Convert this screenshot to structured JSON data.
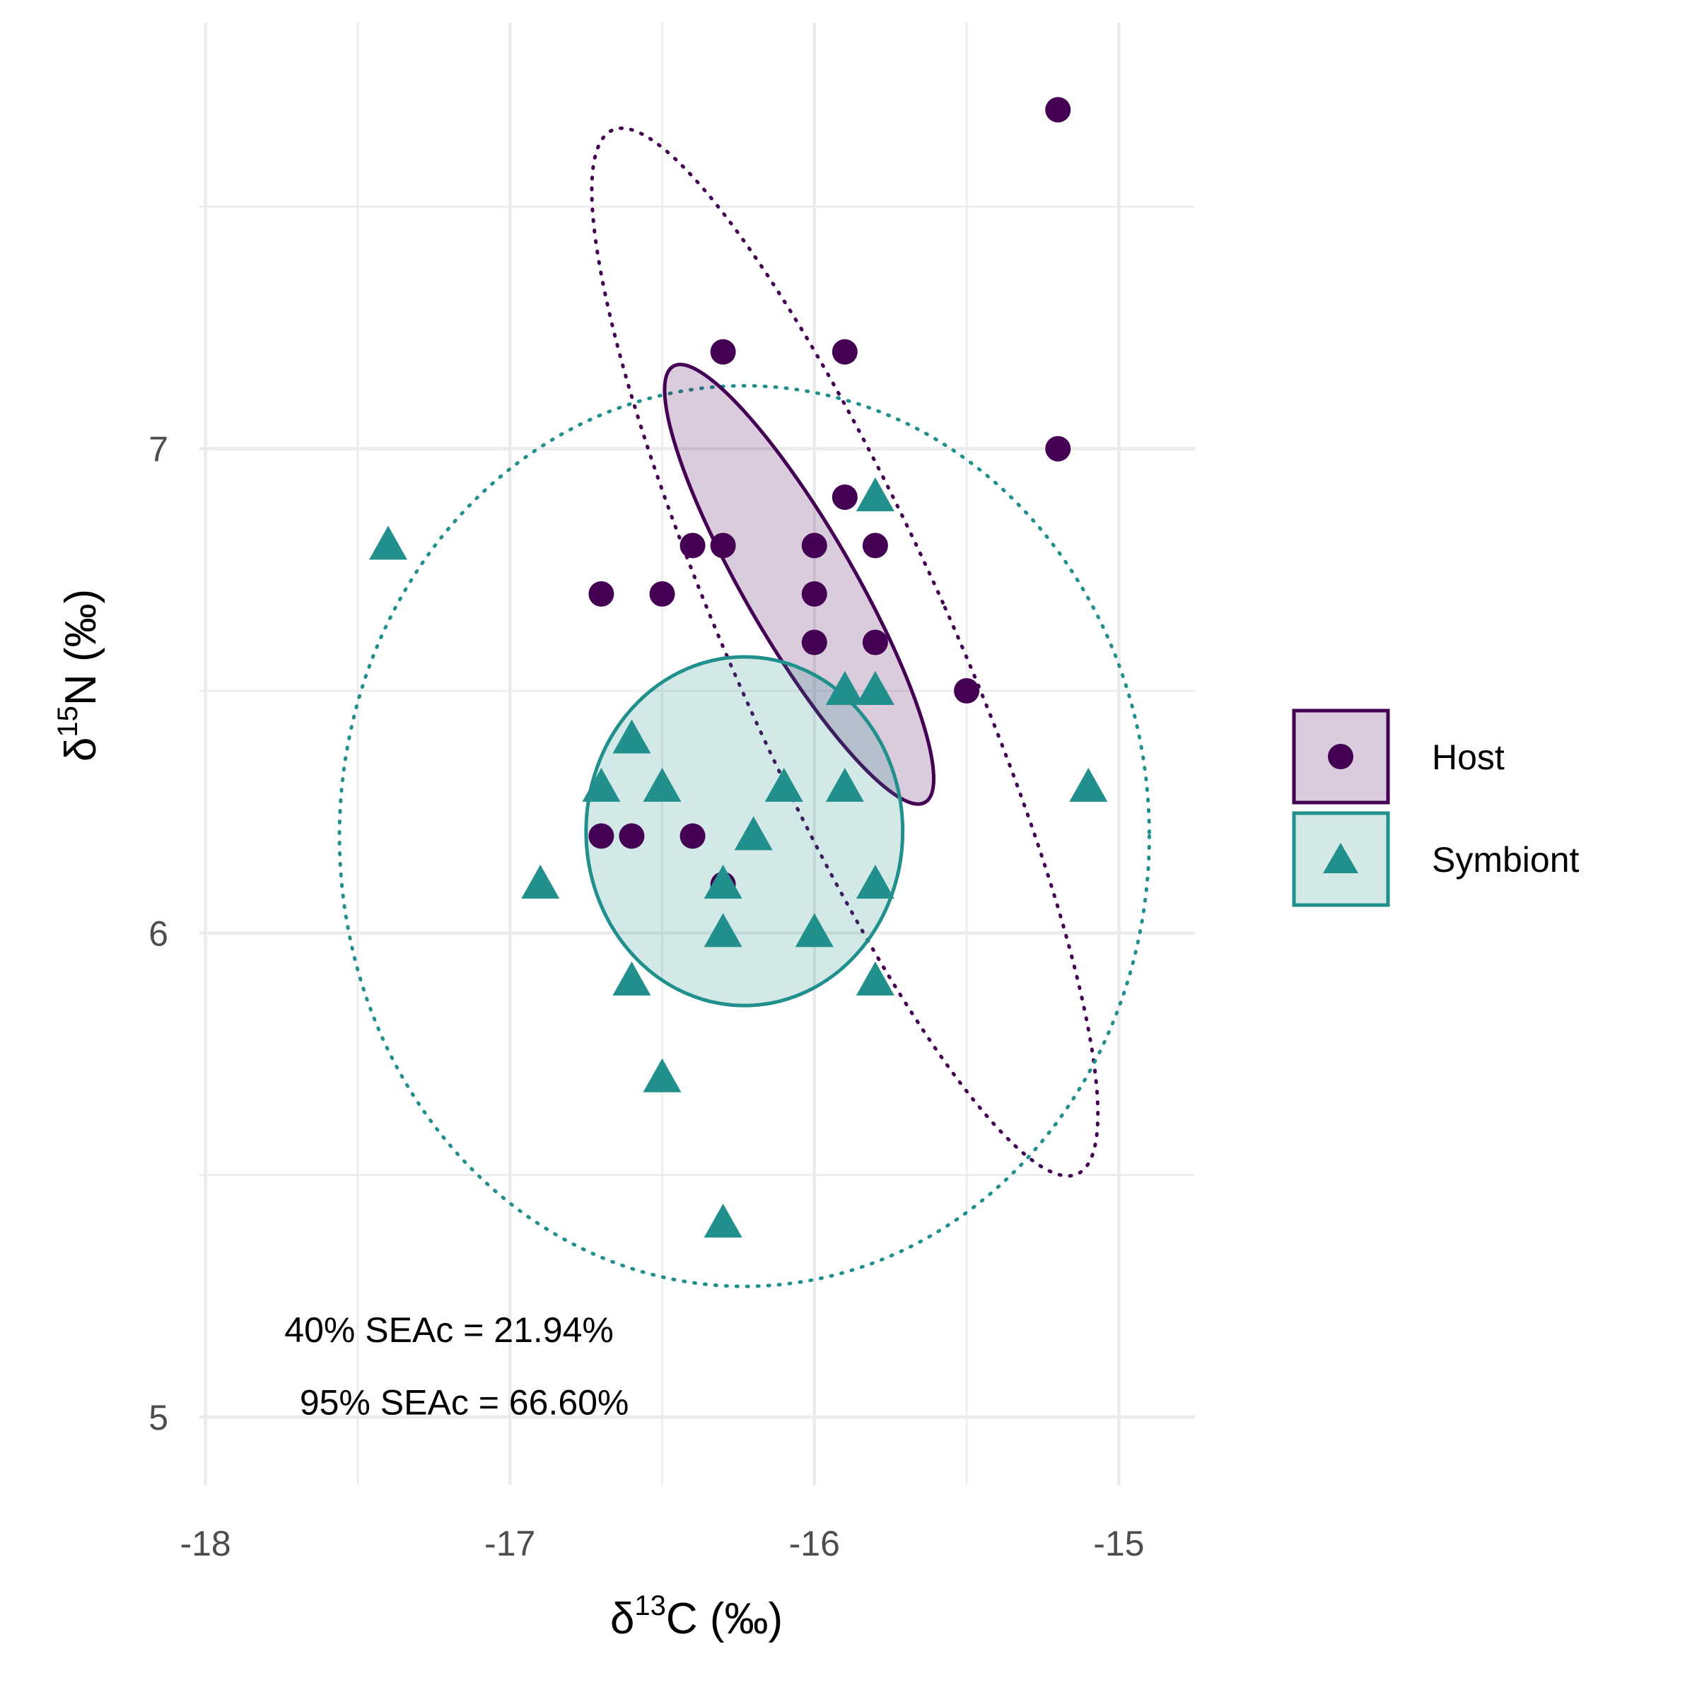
{
  "chart_data": {
    "type": "scatter",
    "xlabel": {
      "prefix": "δ",
      "sup": "13",
      "suffix": "C (‰)"
    },
    "ylabel": {
      "prefix": "δ",
      "sup": "15",
      "suffix": "N (‰)"
    },
    "xlim": [
      -18.02,
      -14.75
    ],
    "ylim": [
      4.86,
      7.88
    ],
    "x_ticks": [
      {
        "value": -18,
        "label": "-18"
      },
      {
        "value": -17,
        "label": "-17"
      },
      {
        "value": -16,
        "label": "-16"
      },
      {
        "value": -15,
        "label": "-15"
      }
    ],
    "y_ticks": [
      {
        "value": 5,
        "label": "5"
      },
      {
        "value": 6,
        "label": "6"
      },
      {
        "value": 7,
        "label": "7"
      }
    ],
    "x_minor": [
      -17.5,
      -16.5,
      -15.5
    ],
    "y_minor": [
      5.5,
      6.5,
      7.5
    ],
    "grid": true,
    "legend_position": "right",
    "series": [
      {
        "name": "Host",
        "shape": "circle",
        "color": "#440154",
        "fill": "#440154",
        "fill_opacity": 0.2,
        "points": [
          [
            -15.2,
            7.7
          ],
          [
            -16.3,
            7.2
          ],
          [
            -15.9,
            7.2
          ],
          [
            -15.2,
            7.0
          ],
          [
            -15.9,
            6.9
          ],
          [
            -16.4,
            6.8
          ],
          [
            -16.3,
            6.8
          ],
          [
            -16.0,
            6.8
          ],
          [
            -15.8,
            6.8
          ],
          [
            -16.7,
            6.7
          ],
          [
            -16.5,
            6.7
          ],
          [
            -16.0,
            6.7
          ],
          [
            -16.0,
            6.6
          ],
          [
            -15.8,
            6.6
          ],
          [
            -15.5,
            6.5
          ],
          [
            -16.7,
            6.2
          ],
          [
            -16.6,
            6.2
          ],
          [
            -16.4,
            6.2
          ],
          [
            -16.3,
            6.1
          ]
        ],
        "ellipse_40": {
          "cx": -16.05,
          "cy": 6.72,
          "rx": 0.18,
          "ry": 0.52,
          "angle": -30
        },
        "ellipse_95": {
          "cx": -15.9,
          "cy": 6.58,
          "rx": 0.36,
          "ry": 1.18,
          "angle": -24
        }
      },
      {
        "name": "Symbiont",
        "shape": "triangle",
        "color": "#21908C",
        "fill": "#21908C",
        "fill_opacity": 0.2,
        "points": [
          [
            -17.4,
            6.8
          ],
          [
            -15.8,
            6.9
          ],
          [
            -15.9,
            6.5
          ],
          [
            -15.8,
            6.5
          ],
          [
            -16.6,
            6.4
          ],
          [
            -16.7,
            6.3
          ],
          [
            -16.5,
            6.3
          ],
          [
            -16.1,
            6.3
          ],
          [
            -15.9,
            6.3
          ],
          [
            -15.1,
            6.3
          ],
          [
            -16.2,
            6.2
          ],
          [
            -16.9,
            6.1
          ],
          [
            -16.3,
            6.1
          ],
          [
            -15.8,
            6.1
          ],
          [
            -16.3,
            6.0
          ],
          [
            -16.0,
            6.0
          ],
          [
            -16.6,
            5.9
          ],
          [
            -15.8,
            5.9
          ],
          [
            -16.5,
            5.7
          ],
          [
            -16.3,
            5.4
          ]
        ],
        "ellipse_40": {
          "cx": -16.23,
          "cy": 6.21,
          "rx": 0.52,
          "ry": 0.36,
          "angle": 0
        },
        "ellipse_95": {
          "cx": -16.23,
          "cy": 6.2,
          "rx": 1.33,
          "ry": 0.93,
          "angle": 0
        }
      }
    ],
    "annotations": [
      {
        "text": "40% SEAc = 21.94%",
        "x": -17.2,
        "y": 5.18
      },
      {
        "text": "95% SEAc = 66.60%",
        "x": -17.15,
        "y": 5.03
      }
    ]
  }
}
